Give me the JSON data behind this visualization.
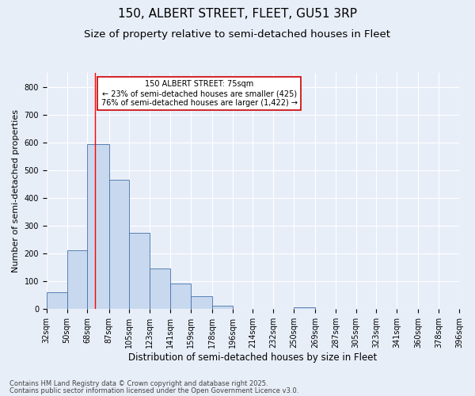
{
  "title1": "150, ALBERT STREET, FLEET, GU51 3RP",
  "title2": "Size of property relative to semi-detached houses in Fleet",
  "xlabel": "Distribution of semi-detached houses by size in Fleet",
  "ylabel": "Number of semi-detached properties",
  "footnote1": "Contains HM Land Registry data © Crown copyright and database right 2025.",
  "footnote2": "Contains public sector information licensed under the Open Government Licence v3.0.",
  "bin_labels": [
    "32sqm",
    "50sqm",
    "68sqm",
    "87sqm",
    "105sqm",
    "123sqm",
    "141sqm",
    "159sqm",
    "178sqm",
    "196sqm",
    "214sqm",
    "232sqm",
    "250sqm",
    "269sqm",
    "287sqm",
    "305sqm",
    "323sqm",
    "341sqm",
    "360sqm",
    "378sqm",
    "396sqm"
  ],
  "bin_edges": [
    32,
    50,
    68,
    87,
    105,
    123,
    141,
    159,
    178,
    196,
    214,
    232,
    250,
    269,
    287,
    305,
    323,
    341,
    360,
    378,
    396
  ],
  "bar_heights": [
    60,
    210,
    595,
    465,
    275,
    145,
    90,
    45,
    10,
    0,
    0,
    0,
    5,
    0,
    0,
    0,
    0,
    0,
    0,
    0
  ],
  "bar_color": "#c8d8ee",
  "bar_edge_color": "#4472a8",
  "red_line_x": 75,
  "annotation_title": "150 ALBERT STREET: 75sqm",
  "annotation_line1": "← 23% of semi-detached houses are smaller (425)",
  "annotation_line2": "76% of semi-detached houses are larger (1,422) →",
  "annotation_box_facecolor": "#ffffff",
  "annotation_box_edgecolor": "#cc0000",
  "ylim": [
    0,
    850
  ],
  "yticks": [
    0,
    100,
    200,
    300,
    400,
    500,
    600,
    700,
    800
  ],
  "bg_color": "#e8eef8",
  "plot_bg_color": "#e8eef8",
  "grid_color": "#ffffff",
  "title1_fontsize": 11,
  "title2_fontsize": 9.5,
  "ylabel_fontsize": 8,
  "xlabel_fontsize": 8.5,
  "tick_fontsize": 7,
  "ann_fontsize": 7,
  "footnote_fontsize": 6,
  "footnote_color": "#444444"
}
